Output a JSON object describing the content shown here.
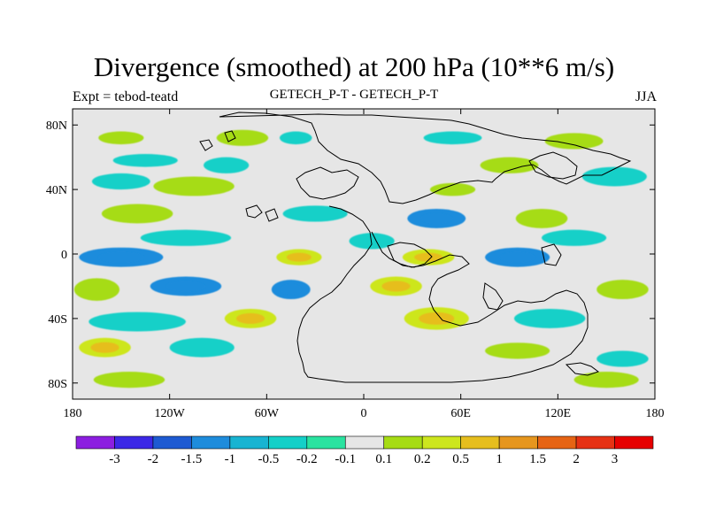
{
  "title": "Divergence (smoothed) at 200 hPa (10**6 m/s)",
  "left_label": "Expt = tebod-teatd",
  "center_label": "GETECH_P-T - GETECH_P-T",
  "right_label": "JJA",
  "chart_data": {
    "type": "heatmap",
    "title": "Divergence (smoothed) at 200 hPa (10**6 m/s)",
    "xlabel": "",
    "ylabel": "",
    "xlim": [
      -180,
      180
    ],
    "ylim": [
      -90,
      90
    ],
    "x_ticks": [
      {
        "value": -180,
        "label": "180"
      },
      {
        "value": -120,
        "label": "120W"
      },
      {
        "value": -60,
        "label": "60W"
      },
      {
        "value": 0,
        "label": "0"
      },
      {
        "value": 60,
        "label": "60E"
      },
      {
        "value": 120,
        "label": "120E"
      },
      {
        "value": 180,
        "label": "180"
      }
    ],
    "y_ticks": [
      {
        "value": 80,
        "label": "80N"
      },
      {
        "value": 40,
        "label": "40N"
      },
      {
        "value": 0,
        "label": "0"
      },
      {
        "value": -40,
        "label": "40S"
      },
      {
        "value": -80,
        "label": "80S"
      }
    ],
    "colorbar": {
      "labels": [
        "-3",
        "-2",
        "-1.5",
        "-1",
        "-0.5",
        "-0.2",
        "-0.1",
        "0.1",
        "0.2",
        "0.5",
        "1",
        "1.5",
        "2",
        "3"
      ],
      "colors": [
        "#8c1ee0",
        "#3c28e6",
        "#1e5ad2",
        "#1e8cdc",
        "#18b4d2",
        "#14d0c8",
        "#2ae3a0",
        "#e6e6e6",
        "#a6dc14",
        "#cde61e",
        "#e6be1e",
        "#e6961e",
        "#e66414",
        "#e63214",
        "#e60000"
      ]
    },
    "regions": [
      {
        "lon": -150,
        "lat": 72,
        "level": 1,
        "rx": 14,
        "ry": 4
      },
      {
        "lon": -75,
        "lat": 72,
        "level": 1,
        "rx": 16,
        "ry": 5
      },
      {
        "lon": -42,
        "lat": 72,
        "level": -1,
        "rx": 10,
        "ry": 4
      },
      {
        "lon": 55,
        "lat": 72,
        "level": -1,
        "rx": 18,
        "ry": 4
      },
      {
        "lon": 130,
        "lat": 70,
        "level": 1,
        "rx": 18,
        "ry": 5
      },
      {
        "lon": -135,
        "lat": 58,
        "level": -1,
        "rx": 20,
        "ry": 4
      },
      {
        "lon": -85,
        "lat": 55,
        "level": -1,
        "rx": 14,
        "ry": 5
      },
      {
        "lon": 90,
        "lat": 55,
        "level": 1,
        "rx": 18,
        "ry": 5
      },
      {
        "lon": -150,
        "lat": 45,
        "level": -1,
        "rx": 18,
        "ry": 5
      },
      {
        "lon": -105,
        "lat": 42,
        "level": 1,
        "rx": 25,
        "ry": 6
      },
      {
        "lon": 55,
        "lat": 40,
        "level": 1,
        "rx": 14,
        "ry": 4
      },
      {
        "lon": 155,
        "lat": 48,
        "level": -1,
        "rx": 20,
        "ry": 6
      },
      {
        "lon": -140,
        "lat": 25,
        "level": 1,
        "rx": 22,
        "ry": 6
      },
      {
        "lon": -30,
        "lat": 25,
        "level": -1,
        "rx": 20,
        "ry": 5
      },
      {
        "lon": 45,
        "lat": 22,
        "level": -2,
        "rx": 18,
        "ry": 6
      },
      {
        "lon": 110,
        "lat": 22,
        "level": 1,
        "rx": 16,
        "ry": 6
      },
      {
        "lon": -110,
        "lat": 10,
        "level": -1,
        "rx": 28,
        "ry": 5
      },
      {
        "lon": 5,
        "lat": 8,
        "level": -1,
        "rx": 14,
        "ry": 5
      },
      {
        "lon": 130,
        "lat": 10,
        "level": -1,
        "rx": 20,
        "ry": 5
      },
      {
        "lon": -150,
        "lat": -2,
        "level": -2,
        "rx": 26,
        "ry": 6
      },
      {
        "lon": -40,
        "lat": -2,
        "level": 2,
        "rx": 14,
        "ry": 5
      },
      {
        "lon": 40,
        "lat": -2,
        "level": 2,
        "rx": 16,
        "ry": 5
      },
      {
        "lon": 95,
        "lat": -2,
        "level": -2,
        "rx": 20,
        "ry": 6
      },
      {
        "lon": -165,
        "lat": -22,
        "level": 1,
        "rx": 14,
        "ry": 7
      },
      {
        "lon": -110,
        "lat": -20,
        "level": -2,
        "rx": 22,
        "ry": 6
      },
      {
        "lon": -45,
        "lat": -22,
        "level": -2,
        "rx": 12,
        "ry": 6
      },
      {
        "lon": 20,
        "lat": -20,
        "level": 2,
        "rx": 16,
        "ry": 6
      },
      {
        "lon": 160,
        "lat": -22,
        "level": 1,
        "rx": 16,
        "ry": 6
      },
      {
        "lon": -140,
        "lat": -42,
        "level": -1,
        "rx": 30,
        "ry": 6
      },
      {
        "lon": -70,
        "lat": -40,
        "level": 2,
        "rx": 16,
        "ry": 6
      },
      {
        "lon": 45,
        "lat": -40,
        "level": 2,
        "rx": 20,
        "ry": 7
      },
      {
        "lon": 115,
        "lat": -40,
        "level": -1,
        "rx": 22,
        "ry": 6
      },
      {
        "lon": -160,
        "lat": -58,
        "level": 2,
        "rx": 16,
        "ry": 6
      },
      {
        "lon": -100,
        "lat": -58,
        "level": -1,
        "rx": 20,
        "ry": 6
      },
      {
        "lon": 95,
        "lat": -60,
        "level": 1,
        "rx": 20,
        "ry": 5
      },
      {
        "lon": 160,
        "lat": -65,
        "level": -1,
        "rx": 16,
        "ry": 5
      },
      {
        "lon": -145,
        "lat": -78,
        "level": 1,
        "rx": 22,
        "ry": 5
      },
      {
        "lon": 150,
        "lat": -78,
        "level": 1,
        "rx": 20,
        "ry": 5
      }
    ]
  }
}
